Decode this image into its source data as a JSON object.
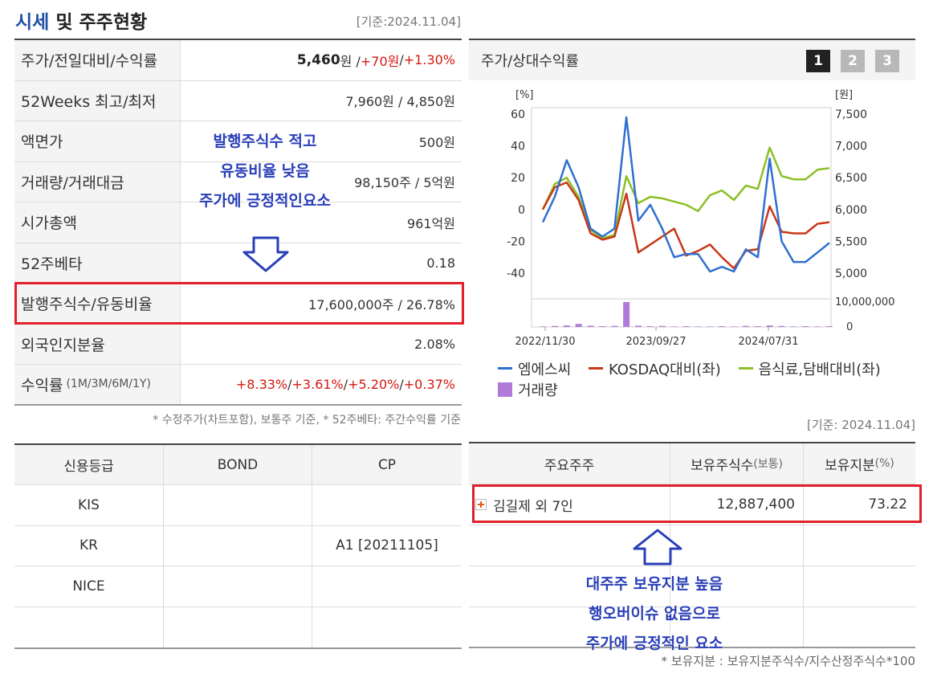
{
  "header": {
    "title_accent": "시세",
    "title_rest": " 및 주주현황",
    "base_date": "[기준:2024.11.04]"
  },
  "price_table": {
    "rows": [
      {
        "label": "주가/전일대비/수익률"
      },
      {
        "label": "52Weeks 최고/최저",
        "value": "7,960원 / 4,850원"
      },
      {
        "label": "액면가",
        "value": "500원"
      },
      {
        "label": "거래량/거래대금",
        "value": "98,150주 / 5억원"
      },
      {
        "label": "시가총액",
        "value": "961억원"
      },
      {
        "label": "52주베타",
        "value": "0.18"
      },
      {
        "label": "발행주식수/유동비율",
        "value": "17,600,000주 / 26.78%"
      },
      {
        "label": "외국인지분율",
        "value": "2.08%"
      },
      {
        "label": "수익률",
        "label_small": "(1M/3M/6M/1Y)"
      }
    ],
    "price": "5,460",
    "price_unit": "원 / ",
    "change": "+70원",
    "sep": " / ",
    "rate": "+1.30%",
    "returns": [
      "+8.33%",
      "+3.61%",
      "+5.20%",
      "+0.37%"
    ],
    "returns_sep": "/ ",
    "note": "* 수정주가(차트포함), 보통주 기준, * 52주베타: 주간수익률 기준"
  },
  "credit_table": {
    "headers": [
      "신용등급",
      "BOND",
      "CP"
    ],
    "rows": [
      [
        "KIS",
        "",
        ""
      ],
      [
        "KR",
        "",
        "A1 [20211105]"
      ],
      [
        "NICE",
        "",
        ""
      ],
      [
        "",
        "",
        ""
      ]
    ]
  },
  "chart_panel": {
    "title": "주가/상대수익률",
    "pages": [
      "1",
      "2",
      "3"
    ],
    "active_page": "1",
    "legend": [
      "엠에스씨",
      "KOSDAQ대비(좌)",
      "음식료,담배대비(좌)",
      "거래량"
    ]
  },
  "chart_data": {
    "type": "line",
    "y_left_unit": "[%]",
    "y_right_unit": "[원]",
    "y_left_ticks": [
      "60",
      "40",
      "20",
      "0",
      "-20",
      "-40"
    ],
    "y_right_ticks": [
      "7,500",
      "7,000",
      "6,500",
      "6,000",
      "5,500",
      "5,000"
    ],
    "volume_ticks": [
      "10,000,000",
      "0"
    ],
    "x_ticks": [
      "2022/11/30",
      "2023/09/27",
      "2024/07/31"
    ],
    "y_left_range": [
      -40,
      60
    ],
    "y_right_range": [
      5000,
      7500
    ],
    "colors": {
      "stock": "#2f6fd0",
      "kosdaq": "#c8381a",
      "sector": "#8cbf26",
      "volume": "#b07ad8"
    },
    "series": [
      {
        "name": "엠에스씨",
        "values": [
          -8,
          8,
          31,
          14,
          -12,
          -17,
          -12,
          58,
          -7,
          3,
          -12,
          -30,
          -28,
          -28,
          -39,
          -36,
          -39,
          -25,
          -30,
          32,
          -20,
          -33,
          -33,
          -27,
          -21
        ]
      },
      {
        "name": "KOSDAQ대비(좌)",
        "values": [
          0,
          14,
          17,
          6,
          -15,
          -19,
          -17,
          10,
          -27,
          -22,
          -17,
          -12,
          -29,
          -26,
          -22,
          -30,
          -37,
          -26,
          -25,
          2,
          -14,
          -15,
          -15,
          -9,
          -8
        ]
      },
      {
        "name": "음식료,담배대비(좌)",
        "values": [
          0,
          16,
          20,
          8,
          -13,
          -18,
          -16,
          21,
          4,
          8,
          7,
          5,
          3,
          -1,
          9,
          12,
          6,
          15,
          13,
          39,
          21,
          19,
          19,
          25,
          26
        ]
      }
    ],
    "volume": [
      0.02,
      0.04,
      0.06,
      0.12,
      0.05,
      0.03,
      0.04,
      1.0,
      0.05,
      0.03,
      0.04,
      0.02,
      0.03,
      0.02,
      0.02,
      0.03,
      0.02,
      0.04,
      0.03,
      0.06,
      0.04,
      0.02,
      0.03,
      0.02,
      0.03
    ]
  },
  "shareholders": {
    "base_date": "[기준: 2024.11.04]",
    "headers": [
      "주요주주",
      "보유주식수",
      "(보통)",
      "보유지분",
      "(%)"
    ],
    "rows": [
      {
        "name": "김길제 외 7인",
        "shares": "12,887,400",
        "stake": "73.22"
      }
    ],
    "note": "* 보유지분 : 보유지분주식수/지수산정주식수*100"
  },
  "annotations": {
    "left": [
      "발행주식수 적고",
      "유동비율 낮음",
      "주가에 긍정적인요소"
    ],
    "right": [
      "대주주 보유지분 높음",
      "행오버이슈 없음으로",
      "주가에 긍정적인 요소"
    ]
  }
}
